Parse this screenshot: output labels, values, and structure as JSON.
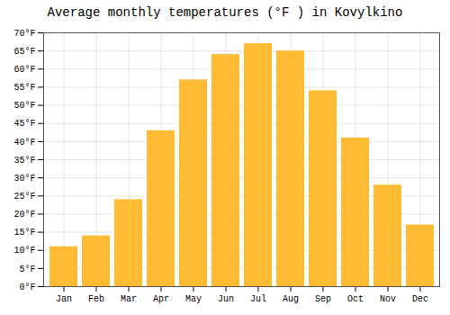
{
  "chart_data": {
    "type": "bar",
    "title": "Average monthly temperatures (°F ) in Kovylkino",
    "categories": [
      "Jan",
      "Feb",
      "Mar",
      "Apr",
      "May",
      "Jun",
      "Jul",
      "Aug",
      "Sep",
      "Oct",
      "Nov",
      "Dec"
    ],
    "values": [
      11,
      14,
      24,
      43,
      57,
      64,
      67,
      65,
      54,
      41,
      28,
      17
    ],
    "color": "#FFBB33",
    "ylim": [
      0,
      70
    ],
    "yticks": [
      {
        "value": 0,
        "label": "0°F"
      },
      {
        "value": 5,
        "label": "5°F"
      },
      {
        "value": 10,
        "label": "10°F"
      },
      {
        "value": 15,
        "label": "15°F"
      },
      {
        "value": 20,
        "label": "20°F"
      },
      {
        "value": 25,
        "label": "25°F"
      },
      {
        "value": 30,
        "label": "30°F"
      },
      {
        "value": 35,
        "label": "35°F"
      },
      {
        "value": 40,
        "label": "40°F"
      },
      {
        "value": 45,
        "label": "45°F"
      },
      {
        "value": 50,
        "label": "50°F"
      },
      {
        "value": 55,
        "label": "55°F"
      },
      {
        "value": 60,
        "label": "60°F"
      },
      {
        "value": 65,
        "label": "65°F"
      },
      {
        "value": 70,
        "label": "70°F"
      }
    ],
    "grid": true
  }
}
